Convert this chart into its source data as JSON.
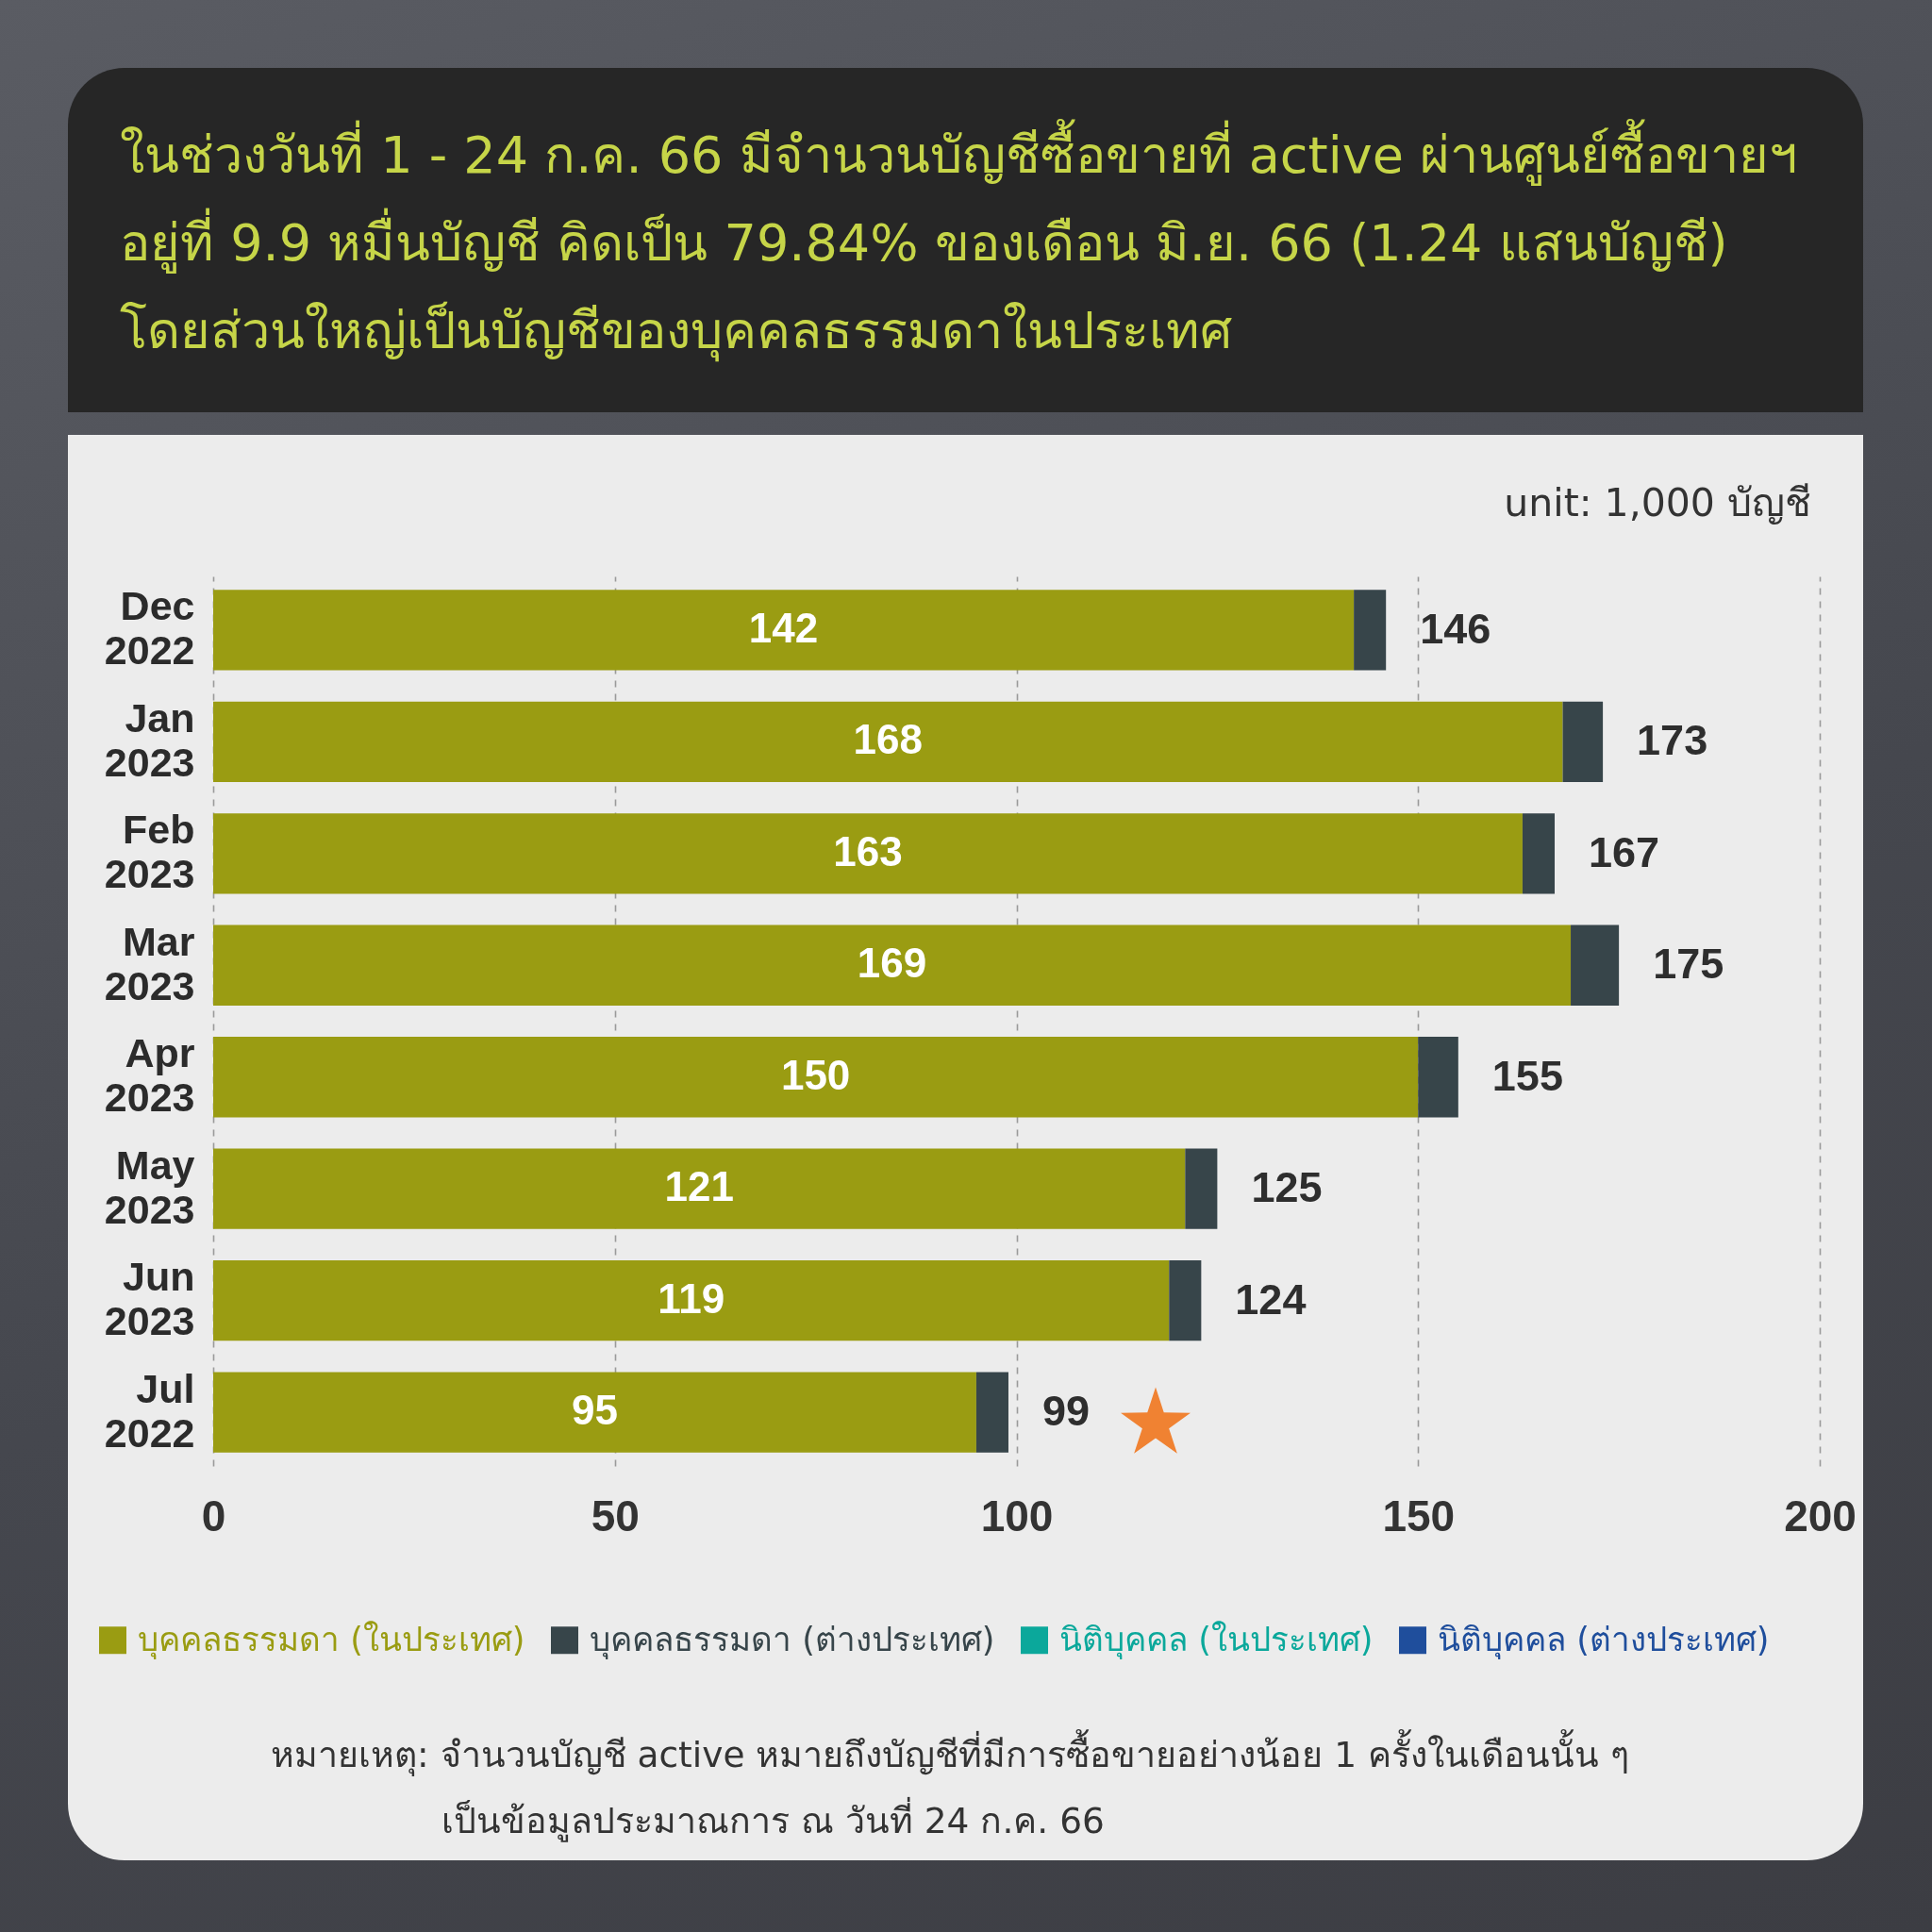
{
  "chart_data": {
    "type": "bar",
    "orientation": "horizontal",
    "stacked": true,
    "title": "ในช่วงวันที่ 1 - 24 ก.ค. 66 มีจำนวนบัญชีซื้อขายที่ active ผ่านศูนย์ซื้อขายฯ อยู่ที่ 9.9 หมื่นบัญชี คิดเป็น 79.84% ของเดือน มิ.ย. 66 (1.24 แสนบัญชี) โดยส่วนใหญ่เป็นบัญชีของบุคคลธรรมดาในประเทศ",
    "annotations": [
      "unit: 1,000 บัญชี",
      "หมายเหตุ: จำนวนบัญชี active หมายถึงบัญชีที่มีการซื้อขายอย่างน้อย 1 ครั้งในเดือนนั้น ๆ",
      "เป็นข้อมูลประมาณการ ณ วันที่ 24 ก.ค. 66"
    ],
    "categories": [
      "Dec 2022",
      "Jan 2023",
      "Feb 2023",
      "Mar 2023",
      "Apr 2023",
      "May 2023",
      "Jun 2023",
      "Jul 2022"
    ],
    "series": [
      {
        "name": "บุคคลธรรมดา (ในประเทศ)",
        "color": "#9a9c12",
        "values": [
          142,
          168,
          163,
          169,
          150,
          121,
          119,
          95
        ],
        "value_labels": [
          "142",
          "168",
          "163",
          "169",
          "150",
          "121",
          "119",
          "95"
        ]
      },
      {
        "name": "บุคคลธรรมดา (ต่างประเทศ)",
        "color": "#37454a",
        "values": [
          4,
          5,
          4,
          6,
          5,
          4,
          4,
          4
        ]
      },
      {
        "name": "นิติบุคคล (ในประเทศ)",
        "color": "#0ba89b",
        "values": [
          null,
          null,
          null,
          null,
          null,
          null,
          null,
          null
        ]
      },
      {
        "name": "นิติบุคคล (ต่างประเทศ)",
        "color": "#1f4e9c",
        "values": [
          null,
          null,
          null,
          null,
          null,
          null,
          null,
          null
        ]
      }
    ],
    "totals": [
      "146",
      "173",
      "167",
      "175",
      "155",
      "125",
      "124",
      "99"
    ],
    "xlim": [
      0,
      200
    ],
    "xticks": [
      0,
      50,
      100,
      150,
      200
    ],
    "grid": "x",
    "legend": "bottom"
  }
}
